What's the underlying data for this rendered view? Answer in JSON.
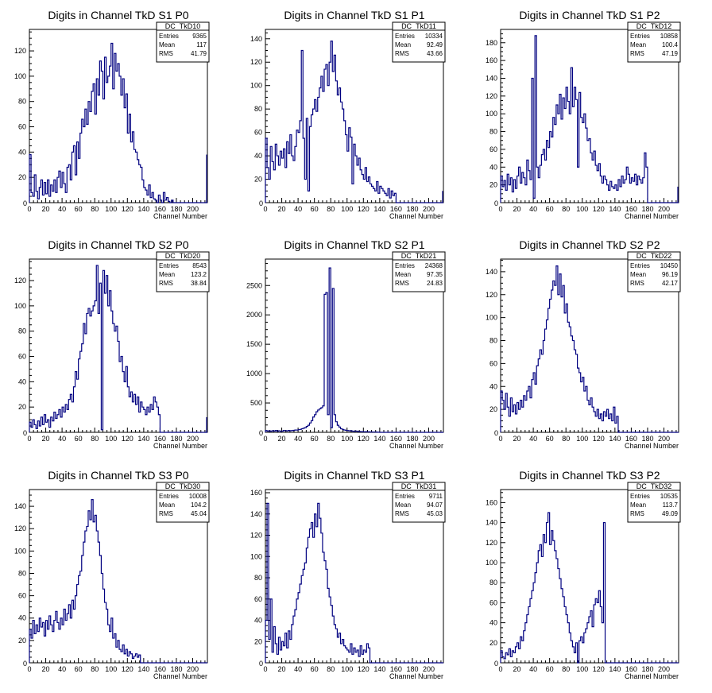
{
  "chart_data": [
    {
      "type": "histogram",
      "name": "DC_TkD10",
      "title": "Digits in Channel TkD S1 P0",
      "xlabel": "Channel Number",
      "ylabel": "",
      "xlim": [
        0,
        218
      ],
      "ylim": [
        0,
        137
      ],
      "xticks": [
        0,
        20,
        40,
        60,
        80,
        100,
        120,
        140,
        160,
        180,
        200
      ],
      "yticks": [
        20,
        40,
        60,
        80,
        100,
        120
      ],
      "stats": {
        "Entries": "9365",
        "Mean": "117",
        "RMS": "41.79"
      },
      "bins_step": 2,
      "values": [
        38,
        8,
        5,
        22,
        9,
        3,
        12,
        18,
        6,
        16,
        7,
        18,
        5,
        14,
        9,
        18,
        8,
        20,
        25,
        12,
        24,
        15,
        8,
        28,
        30,
        18,
        40,
        45,
        22,
        48,
        35,
        55,
        66,
        60,
        74,
        62,
        80,
        72,
        88,
        94,
        70,
        98,
        85,
        112,
        104,
        82,
        115,
        95,
        100,
        108,
        126,
        90,
        118,
        104,
        110,
        100,
        85,
        98,
        75,
        86,
        55,
        70,
        48,
        56,
        42,
        40,
        34,
        30,
        28,
        18,
        12,
        10,
        6,
        14,
        4,
        8,
        3,
        2,
        0,
        6,
        2,
        0,
        8,
        2,
        4,
        1,
        0,
        2,
        0,
        0,
        0,
        0,
        0,
        0,
        0,
        0,
        0,
        0,
        0,
        0,
        0,
        0,
        0,
        0,
        0,
        0,
        0,
        0,
        0,
        0,
        0,
        0,
        0,
        0,
        0,
        0,
        0,
        0,
        0,
        0,
        0,
        0,
        0,
        0,
        0,
        0,
        0,
        0,
        0,
        0,
        0,
        0,
        0,
        0,
        0,
        0,
        0,
        0,
        0,
        0,
        0,
        0,
        0,
        0,
        0,
        0,
        0,
        0,
        0,
        0,
        0,
        0,
        0,
        0,
        0,
        0,
        0,
        0,
        0,
        0,
        0,
        0,
        0,
        0,
        0,
        0,
        0,
        0,
        0,
        0,
        0,
        0,
        0,
        0,
        0,
        0,
        0,
        0,
        0,
        0,
        0,
        0,
        0,
        0,
        0,
        0,
        0,
        0,
        0,
        0,
        0,
        0,
        0,
        0,
        0,
        0,
        0,
        0,
        0,
        0,
        0,
        0,
        0,
        0,
        0,
        0,
        0,
        0,
        0,
        0,
        0,
        0,
        0,
        0,
        0,
        0,
        0,
        0,
        0,
        0,
        0
      ],
      "tail": 38
    },
    {
      "type": "histogram",
      "name": "DC_TkD11",
      "title": "Digits in Channel TkD S1 P1",
      "xlabel": "Channel Number",
      "ylabel": "",
      "xlim": [
        0,
        218
      ],
      "ylim": [
        0,
        148
      ],
      "xticks": [
        0,
        20,
        40,
        60,
        80,
        100,
        120,
        140,
        160,
        180,
        200
      ],
      "yticks": [
        20,
        40,
        60,
        80,
        100,
        120,
        140
      ],
      "stats": {
        "Entries": "10334",
        "Mean": "92.49",
        "RMS": "43.66"
      },
      "bins_step": 2,
      "values": [
        55,
        30,
        20,
        48,
        35,
        28,
        50,
        40,
        32,
        44,
        38,
        46,
        30,
        52,
        42,
        58,
        40,
        36,
        48,
        62,
        60,
        70,
        130,
        55,
        20,
        72,
        10,
        65,
        75,
        80,
        88,
        78,
        90,
        98,
        108,
        95,
        114,
        118,
        100,
        120,
        138,
        112,
        126,
        104,
        92,
        98,
        86,
        80,
        70,
        58,
        44,
        64,
        56,
        16,
        50,
        40,
        32,
        38,
        28,
        24,
        20,
        30,
        18,
        22,
        16,
        14,
        12,
        10,
        18,
        8,
        14,
        12,
        10,
        8,
        6,
        12,
        4,
        10,
        6,
        8,
        0,
        0,
        0,
        0,
        0,
        0,
        0,
        0,
        0,
        0,
        0,
        0,
        0,
        0,
        0,
        0,
        0,
        0,
        0,
        0,
        0,
        0,
        0,
        0,
        0,
        0,
        0,
        0,
        0,
        0,
        0
      ],
      "tail": 10
    },
    {
      "type": "histogram",
      "name": "DC_TkD12",
      "title": "Digits in Channel TkD S1 P2",
      "xlabel": "Channel Number",
      "ylabel": "",
      "xlim": [
        0,
        218
      ],
      "ylim": [
        0,
        195
      ],
      "xticks": [
        0,
        20,
        40,
        60,
        80,
        100,
        120,
        140,
        160,
        180,
        200
      ],
      "yticks": [
        20,
        40,
        60,
        80,
        100,
        120,
        140,
        160,
        180
      ],
      "stats": {
        "Entries": "10858",
        "Mean": "100.4",
        "RMS": "47.19"
      },
      "bins_step": 2,
      "values": [
        30,
        18,
        25,
        14,
        32,
        20,
        28,
        12,
        26,
        16,
        30,
        40,
        22,
        34,
        28,
        20,
        48,
        36,
        26,
        140,
        5,
        188,
        40,
        28,
        42,
        54,
        60,
        48,
        70,
        62,
        80,
        74,
        96,
        88,
        110,
        100,
        122,
        94,
        118,
        106,
        130,
        114,
        100,
        152,
        108,
        130,
        116,
        40,
        124,
        96,
        90,
        100,
        84,
        70,
        72,
        56,
        48,
        58,
        42,
        36,
        44,
        30,
        22,
        30,
        26,
        20,
        14,
        24,
        18,
        16,
        20,
        14,
        26,
        18,
        30,
        22,
        26,
        40,
        32,
        22,
        28,
        24,
        32,
        20,
        30,
        26,
        22,
        28,
        56,
        40,
        0,
        0,
        0,
        0,
        0,
        0,
        0,
        0,
        0,
        0,
        0,
        0,
        0,
        0,
        0,
        0,
        0,
        0,
        0,
        0
      ],
      "tail": 18
    },
    {
      "type": "histogram",
      "name": "DC_TkD20",
      "title": "Digits in Channel TkD S2 P0",
      "xlabel": "Channel Number",
      "ylabel": "",
      "xlim": [
        0,
        218
      ],
      "ylim": [
        0,
        137
      ],
      "xticks": [
        0,
        20,
        40,
        60,
        80,
        100,
        120,
        140,
        160,
        180,
        200
      ],
      "yticks": [
        20,
        40,
        60,
        80,
        100,
        120
      ],
      "stats": {
        "Entries": "8543",
        "Mean": "123.2",
        "RMS": "38.84"
      },
      "bins_step": 2,
      "values": [
        8,
        4,
        10,
        6,
        3,
        9,
        5,
        12,
        6,
        14,
        8,
        10,
        4,
        12,
        9,
        16,
        11,
        14,
        18,
        12,
        20,
        16,
        22,
        18,
        26,
        30,
        24,
        36,
        48,
        42,
        58,
        64,
        70,
        86,
        78,
        94,
        98,
        92,
        96,
        100,
        104,
        132,
        94,
        118,
        2,
        128,
        110,
        124,
        100,
        112,
        96,
        86,
        80,
        84,
        72,
        56,
        60,
        48,
        40,
        52,
        36,
        28,
        32,
        24,
        30,
        22,
        28,
        16,
        24,
        20,
        18,
        14,
        20,
        16,
        22,
        18,
        28,
        24,
        20,
        14,
        0,
        0,
        0,
        0,
        0,
        0,
        0,
        0,
        0,
        0,
        0,
        0,
        0,
        0,
        0,
        0,
        0,
        0,
        0,
        0,
        0,
        0,
        0,
        0,
        0,
        0,
        0,
        0,
        0,
        0,
        0
      ],
      "tail": 12
    },
    {
      "type": "histogram",
      "name": "DC_TkD21",
      "title": "Digits in Channel TkD S2 P1",
      "xlabel": "Channel Number",
      "ylabel": "",
      "xlim": [
        0,
        218
      ],
      "ylim": [
        0,
        2950
      ],
      "xticks": [
        0,
        20,
        40,
        60,
        80,
        100,
        120,
        140,
        160,
        180,
        200
      ],
      "yticks": [
        500,
        1000,
        1500,
        2000,
        2500
      ],
      "stats": {
        "Entries": "24368",
        "Mean": "97.35",
        "RMS": "24.83"
      },
      "bins_step": 2,
      "values": [
        30,
        20,
        25,
        18,
        28,
        22,
        30,
        20,
        26,
        18,
        22,
        30,
        28,
        24,
        32,
        26,
        30,
        35,
        40,
        38,
        45,
        50,
        60,
        70,
        80,
        100,
        120,
        160,
        200,
        260,
        300,
        350,
        380,
        400,
        420,
        450,
        2350,
        2380,
        300,
        2800,
        80,
        2450,
        300,
        180,
        120,
        90,
        60,
        50,
        40,
        35,
        30,
        25,
        28,
        20,
        18,
        22,
        16,
        14,
        12,
        10,
        8,
        10,
        6,
        8,
        5,
        6,
        4,
        5,
        3,
        2,
        0,
        0,
        0,
        0,
        0,
        0,
        0,
        0,
        0,
        0,
        0,
        0,
        0,
        0,
        0,
        0,
        0,
        0,
        0,
        0,
        0,
        0,
        0,
        0,
        0,
        0,
        0,
        0,
        0,
        0,
        0,
        0,
        0,
        0,
        0,
        0,
        0,
        0,
        0
      ],
      "tail": 0
    },
    {
      "type": "histogram",
      "name": "DC_TkD22",
      "title": "Digits in Channel TkD S2 P2",
      "xlabel": "Channel Number",
      "ylabel": "",
      "xlim": [
        0,
        218
      ],
      "ylim": [
        0,
        151
      ],
      "xticks": [
        0,
        20,
        40,
        60,
        80,
        100,
        120,
        140,
        160,
        180,
        200
      ],
      "yticks": [
        20,
        40,
        60,
        80,
        100,
        120,
        140
      ],
      "stats": {
        "Entries": "10450",
        "Mean": "96.19",
        "RMS": "42.17"
      },
      "bins_step": 2,
      "values": [
        36,
        28,
        20,
        34,
        22,
        14,
        30,
        18,
        24,
        16,
        26,
        20,
        28,
        22,
        32,
        28,
        36,
        40,
        30,
        46,
        52,
        42,
        58,
        64,
        72,
        68,
        80,
        90,
        98,
        108,
        116,
        124,
        132,
        128,
        145,
        120,
        138,
        118,
        128,
        104,
        112,
        96,
        92,
        84,
        80,
        72,
        68,
        56,
        52,
        44,
        48,
        36,
        40,
        28,
        24,
        30,
        22,
        18,
        14,
        20,
        12,
        16,
        10,
        18,
        14,
        20,
        12,
        16,
        10,
        22,
        8,
        14,
        0,
        0,
        0,
        0,
        0,
        0,
        0,
        0,
        0,
        0,
        0,
        0,
        0,
        0,
        0,
        0,
        0,
        0,
        0,
        0,
        0,
        0,
        0,
        0,
        0,
        0,
        0,
        0,
        0,
        0,
        0,
        0,
        0,
        0,
        0,
        0,
        0,
        0,
        0
      ],
      "tail": 0
    },
    {
      "type": "histogram",
      "name": "DC_TkD30",
      "title": "Digits in Channel TkD S3 P0",
      "xlabel": "Channel Number",
      "ylabel": "",
      "xlim": [
        0,
        218
      ],
      "ylim": [
        0,
        155
      ],
      "xticks": [
        0,
        20,
        40,
        60,
        80,
        100,
        120,
        140,
        160,
        180,
        200
      ],
      "yticks": [
        20,
        40,
        60,
        80,
        100,
        120,
        140
      ],
      "stats": {
        "Entries": "10008",
        "Mean": "104.2",
        "RMS": "45.04"
      },
      "bins_step": 2,
      "values": [
        30,
        22,
        38,
        26,
        34,
        28,
        40,
        32,
        36,
        24,
        38,
        30,
        42,
        34,
        28,
        38,
        46,
        36,
        30,
        40,
        34,
        48,
        38,
        44,
        52,
        40,
        56,
        48,
        60,
        70,
        78,
        82,
        96,
        108,
        118,
        122,
        136,
        128,
        146,
        126,
        132,
        118,
        108,
        96,
        80,
        66,
        54,
        48,
        34,
        28,
        40,
        22,
        26,
        14,
        20,
        12,
        10,
        16,
        8,
        12,
        6,
        10,
        8,
        4,
        6,
        8,
        5,
        7,
        0,
        0,
        0,
        0,
        0,
        0,
        0,
        0,
        0,
        0,
        0,
        0,
        0,
        0,
        0,
        0,
        0,
        0,
        0,
        0,
        0,
        0,
        0,
        0,
        0,
        0,
        0,
        0,
        0,
        0,
        0,
        0,
        0,
        0,
        0,
        0,
        0,
        0,
        0,
        0,
        0,
        0,
        0
      ],
      "tail": 0
    },
    {
      "type": "histogram",
      "name": "DC_TkD31",
      "title": "Digits in Channel TkD S3 P1",
      "xlabel": "Channel Number",
      "ylabel": "",
      "xlim": [
        0,
        218
      ],
      "ylim": [
        0,
        163
      ],
      "xticks": [
        0,
        20,
        40,
        60,
        80,
        100,
        120,
        140,
        160,
        180,
        200
      ],
      "yticks": [
        20,
        40,
        60,
        80,
        100,
        120,
        140,
        160
      ],
      "stats": {
        "Entries": "9711",
        "Mean": "94.07",
        "RMS": "45.03"
      },
      "bins_step": 2,
      "values": [
        40,
        150,
        22,
        60,
        10,
        34,
        18,
        8,
        24,
        12,
        20,
        16,
        28,
        14,
        30,
        22,
        36,
        44,
        50,
        60,
        66,
        74,
        82,
        88,
        94,
        108,
        118,
        126,
        132,
        118,
        140,
        128,
        150,
        136,
        122,
        104,
        96,
        88,
        70,
        62,
        54,
        44,
        36,
        32,
        24,
        28,
        18,
        22,
        16,
        14,
        12,
        10,
        18,
        8,
        14,
        10,
        12,
        6,
        16,
        8,
        12,
        10,
        18,
        14,
        0,
        0,
        0,
        0,
        0,
        0,
        0,
        0,
        0,
        0,
        0,
        0,
        0,
        0,
        0,
        0,
        0,
        0,
        0,
        0,
        0,
        0,
        0,
        0,
        0,
        0,
        0,
        0,
        0,
        0,
        0,
        0,
        0,
        0,
        0,
        0,
        0,
        0,
        0,
        0,
        0,
        0,
        0,
        0,
        0,
        0,
        0
      ],
      "tail": 0
    },
    {
      "type": "histogram",
      "name": "DC_TkD32",
      "title": "Digits in Channel TkD S3 P2",
      "xlabel": "Channel Number",
      "ylabel": "",
      "xlim": [
        0,
        218
      ],
      "ylim": [
        0,
        173
      ],
      "xticks": [
        0,
        20,
        40,
        60,
        80,
        100,
        120,
        140,
        160,
        180,
        200
      ],
      "yticks": [
        20,
        40,
        60,
        80,
        100,
        120,
        140,
        160
      ],
      "stats": {
        "Entries": "10535",
        "Mean": "113.7",
        "RMS": "49.09"
      },
      "bins_step": 2,
      "values": [
        12,
        6,
        4,
        10,
        8,
        14,
        6,
        12,
        10,
        16,
        20,
        14,
        26,
        22,
        32,
        40,
        48,
        56,
        64,
        72,
        80,
        90,
        100,
        112,
        118,
        106,
        128,
        120,
        140,
        150,
        118,
        132,
        122,
        112,
        104,
        94,
        84,
        74,
        66,
        56,
        48,
        40,
        30,
        22,
        16,
        10,
        20,
        0,
        22,
        26,
        20,
        30,
        34,
        40,
        46,
        52,
        36,
        58,
        64,
        60,
        72,
        56,
        40,
        140,
        0,
        0,
        0,
        0,
        0,
        0,
        0,
        0,
        0,
        0,
        0,
        0,
        0,
        0,
        0,
        0,
        0,
        0,
        0,
        0,
        0,
        0,
        0,
        0,
        0,
        0,
        0,
        0,
        0,
        0,
        0,
        0,
        0,
        0,
        0,
        0,
        0,
        0,
        0,
        0,
        0,
        0,
        0,
        0,
        0,
        0,
        0
      ],
      "tail": 0
    }
  ]
}
